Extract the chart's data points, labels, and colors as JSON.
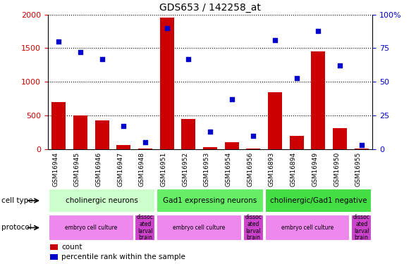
{
  "title": "GDS653 / 142258_at",
  "samples": [
    "GSM16944",
    "GSM16945",
    "GSM16946",
    "GSM16947",
    "GSM16948",
    "GSM16951",
    "GSM16952",
    "GSM16953",
    "GSM16954",
    "GSM16956",
    "GSM16893",
    "GSM16894",
    "GSM16949",
    "GSM16950",
    "GSM16955"
  ],
  "counts": [
    700,
    500,
    430,
    60,
    10,
    1950,
    450,
    30,
    100,
    10,
    850,
    200,
    1450,
    310,
    5
  ],
  "percentiles": [
    80,
    72,
    67,
    17,
    5,
    90,
    67,
    13,
    37,
    10,
    81,
    53,
    88,
    62,
    3
  ],
  "bar_color": "#CC0000",
  "dot_color": "#0000CC",
  "ylim_left": [
    0,
    2000
  ],
  "ylim_right": [
    0,
    100
  ],
  "yticks_left": [
    0,
    500,
    1000,
    1500,
    2000
  ],
  "yticks_right": [
    0,
    25,
    50,
    75,
    100
  ],
  "yticklabels_right": [
    "0",
    "25",
    "50",
    "75",
    "100%"
  ],
  "cell_type_groups": [
    {
      "label": "cholinergic neurons",
      "start": 0,
      "end": 5,
      "color": "#CCFFCC"
    },
    {
      "label": "Gad1 expressing neurons",
      "start": 5,
      "end": 10,
      "color": "#66EE66"
    },
    {
      "label": "cholinergic/Gad1 negative",
      "start": 10,
      "end": 15,
      "color": "#44DD44"
    }
  ],
  "protocol_groups": [
    {
      "label": "embryo cell culture",
      "start": 0,
      "end": 4,
      "color": "#EE88EE"
    },
    {
      "label": "dissoc\nated\nlarval\nbrain",
      "start": 4,
      "end": 5,
      "color": "#CC44CC"
    },
    {
      "label": "embryo cell culture",
      "start": 5,
      "end": 9,
      "color": "#EE88EE"
    },
    {
      "label": "dissoc\nated\nlarval\nbrain",
      "start": 9,
      "end": 10,
      "color": "#CC44CC"
    },
    {
      "label": "embryo cell culture",
      "start": 10,
      "end": 14,
      "color": "#EE88EE"
    },
    {
      "label": "dissoc\nated\nlarval\nbrain",
      "start": 14,
      "end": 15,
      "color": "#CC44CC"
    }
  ],
  "legend_count_label": "count",
  "legend_pct_label": "percentile rank within the sample",
  "cell_type_label": "cell type",
  "protocol_label": "protocol",
  "bg_color": "#FFFFFF",
  "tick_area_bg": "#CCCCCC"
}
